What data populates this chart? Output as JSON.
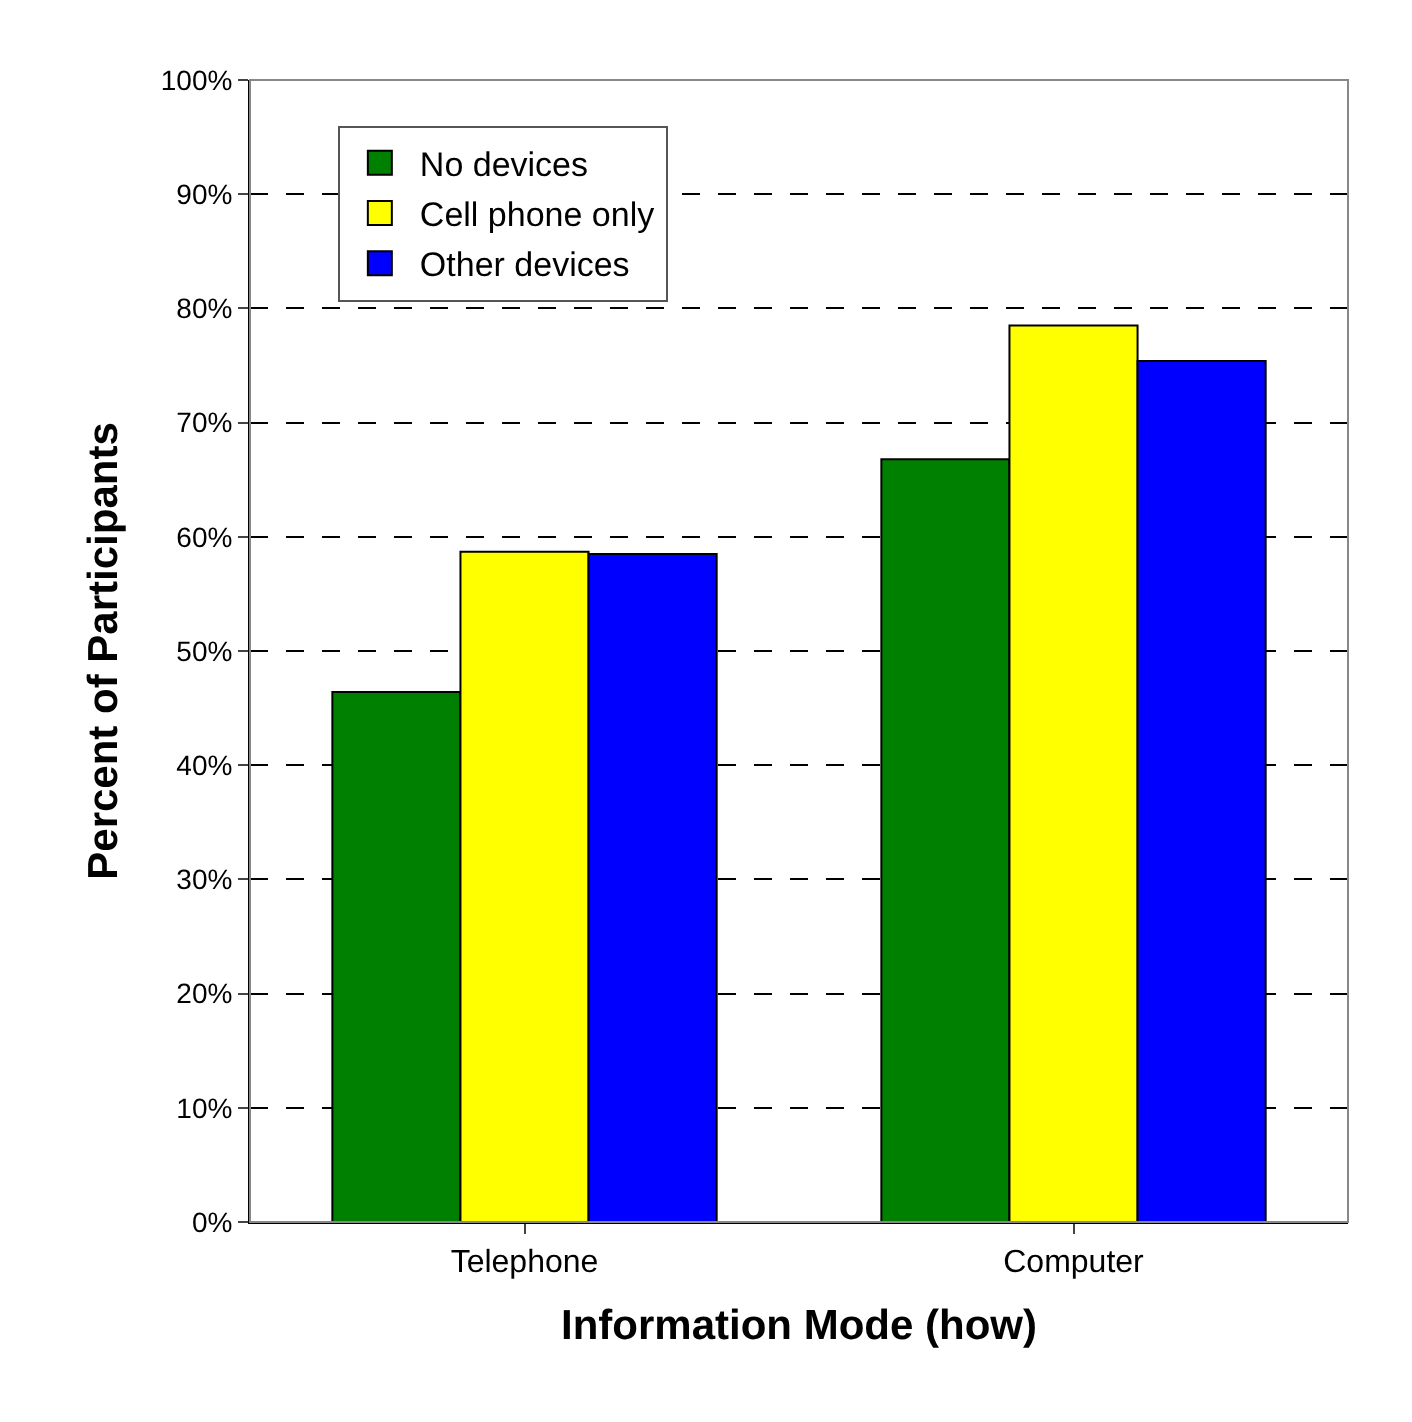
{
  "chart_data": {
    "type": "bar",
    "xlabel": "Information Mode (how)",
    "ylabel": "Percent of Participants",
    "categories": [
      "Telephone",
      "Computer"
    ],
    "series": [
      {
        "name": "No devices",
        "color": "#008000",
        "values": [
          46.4,
          66.8
        ]
      },
      {
        "name": "Cell phone only",
        "color": "#ffff00",
        "values": [
          58.7,
          78.5
        ]
      },
      {
        "name": "Other devices",
        "color": "#0000ff",
        "values": [
          58.5,
          75.4
        ]
      }
    ],
    "ylim": [
      0,
      100
    ],
    "yticks": [
      {
        "value": 0,
        "label": "0%"
      },
      {
        "value": 10,
        "label": "10%"
      },
      {
        "value": 20,
        "label": "20%"
      },
      {
        "value": 30,
        "label": "30%"
      },
      {
        "value": 40,
        "label": "40%"
      },
      {
        "value": 50,
        "label": "50%"
      },
      {
        "value": 60,
        "label": "60%"
      },
      {
        "value": 70,
        "label": "70%"
      },
      {
        "value": 80,
        "label": "80%"
      },
      {
        "value": 90,
        "label": "90%"
      },
      {
        "value": 100,
        "label": "100%"
      }
    ],
    "grid": "y",
    "legend": "top left"
  }
}
